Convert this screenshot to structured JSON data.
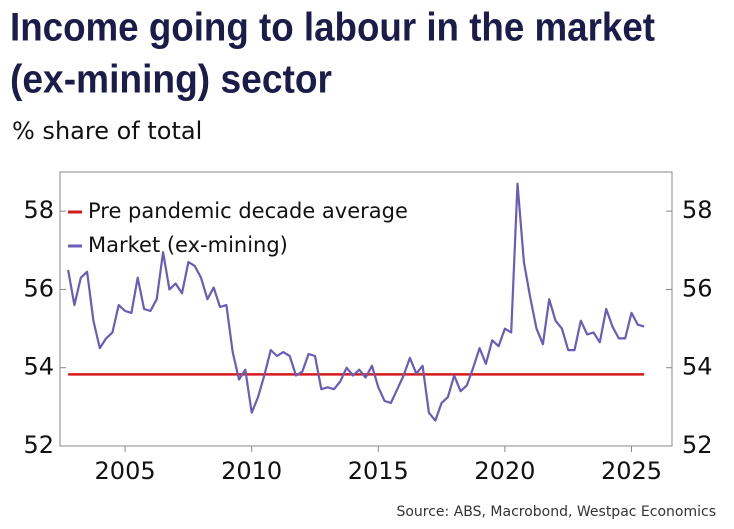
{
  "chart_data": {
    "type": "line",
    "title": [
      "Income going to labour in the market",
      "(ex-mining) sector"
    ],
    "subtitle": "% share of total",
    "source": "Source: ABS, Macrobond, Westpac Economics",
    "x": [
      2002.75,
      2003,
      2003.25,
      2003.5,
      2003.75,
      2004,
      2004.25,
      2004.5,
      2004.75,
      2005,
      2005.25,
      2005.5,
      2005.75,
      2006,
      2006.25,
      2006.5,
      2006.75,
      2007,
      2007.25,
      2007.5,
      2007.75,
      2008,
      2008.25,
      2008.5,
      2008.75,
      2009,
      2009.25,
      2009.5,
      2009.75,
      2010,
      2010.25,
      2010.5,
      2010.75,
      2011,
      2011.25,
      2011.5,
      2011.75,
      2012,
      2012.25,
      2012.5,
      2012.75,
      2013,
      2013.25,
      2013.5,
      2013.75,
      2014,
      2014.25,
      2014.5,
      2014.75,
      2015,
      2015.25,
      2015.5,
      2015.75,
      2016,
      2016.25,
      2016.5,
      2016.75,
      2017,
      2017.25,
      2017.5,
      2017.75,
      2018,
      2018.25,
      2018.5,
      2018.75,
      2019,
      2019.25,
      2019.5,
      2019.75,
      2020,
      2020.25,
      2020.5,
      2020.75,
      2021,
      2021.25,
      2021.5,
      2021.75,
      2022,
      2022.25,
      2022.5,
      2022.75,
      2023,
      2023.25,
      2023.5,
      2023.75,
      2024,
      2024.25,
      2024.5,
      2024.75,
      2025,
      2025.25,
      2025.5
    ],
    "series": [
      {
        "name": "Pre pandemic decade average",
        "color": "#d7191c",
        "value": 53.83
      },
      {
        "name": "Market (ex-mining)",
        "color": "#6a5cb8",
        "values": [
          56.5,
          55.6,
          56.3,
          56.45,
          55.2,
          54.5,
          54.75,
          54.9,
          55.6,
          55.45,
          55.4,
          56.3,
          55.5,
          55.45,
          55.75,
          56.95,
          56.0,
          56.15,
          55.9,
          56.7,
          56.6,
          56.3,
          55.75,
          56.05,
          55.55,
          55.6,
          54.4,
          53.7,
          53.95,
          52.85,
          53.25,
          53.8,
          54.45,
          54.3,
          54.4,
          54.3,
          53.8,
          53.9,
          54.35,
          54.3,
          53.45,
          53.5,
          53.45,
          53.65,
          54.0,
          53.8,
          53.95,
          53.75,
          54.05,
          53.5,
          53.15,
          53.1,
          53.45,
          53.8,
          54.25,
          53.85,
          54.05,
          52.85,
          52.65,
          53.1,
          53.25,
          53.8,
          53.4,
          53.55,
          54.0,
          54.5,
          54.1,
          54.7,
          54.55,
          55.0,
          54.9,
          58.7,
          56.7,
          55.8,
          55.0,
          54.6,
          55.75,
          55.2,
          55.0,
          54.45,
          54.45,
          55.2,
          54.85,
          54.9,
          54.65,
          55.5,
          55.05,
          54.75,
          54.75,
          55.4,
          55.1,
          55.05
        ]
      }
    ],
    "xlim": [
      2002.43,
      2026.6
    ],
    "xticks": [
      2005,
      2010,
      2015,
      2020,
      2025
    ],
    "ylim": [
      52,
      59
    ],
    "yticks": [
      52,
      54,
      56,
      58
    ],
    "y2lim": [
      52,
      59
    ],
    "y2ticks": [
      52,
      54,
      56,
      58
    ],
    "legend": "upper left"
  }
}
